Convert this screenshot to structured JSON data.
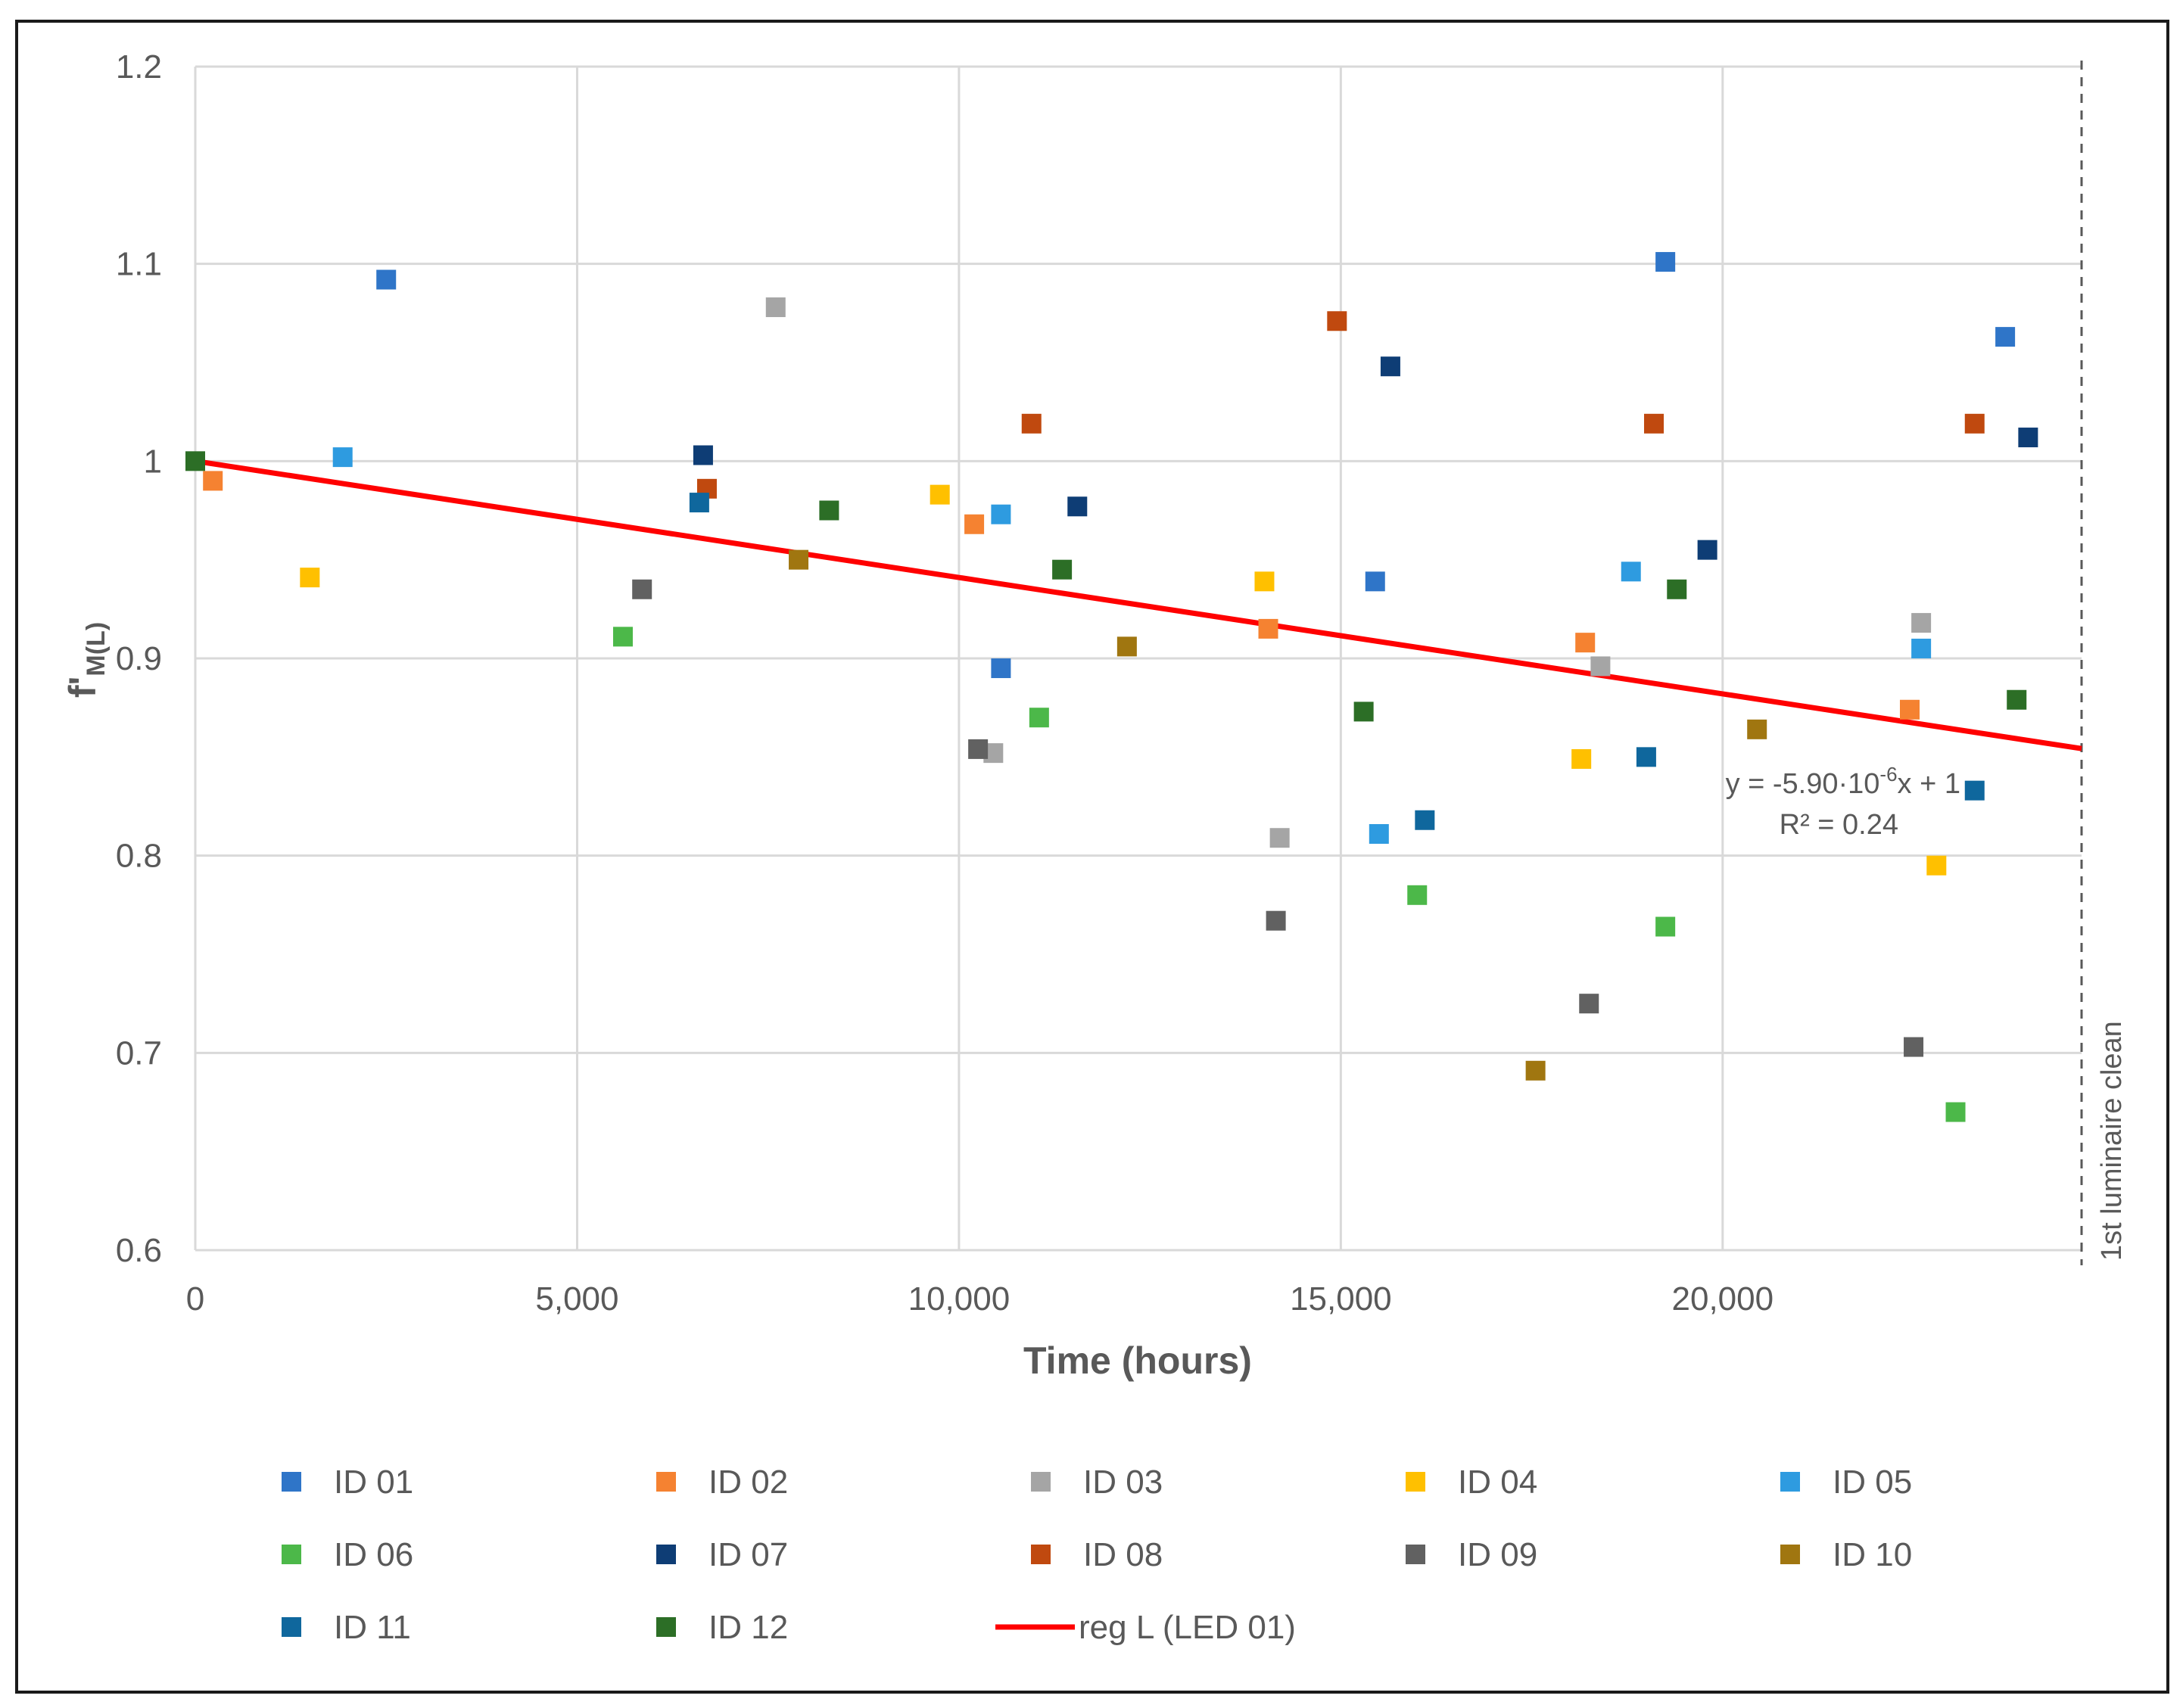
{
  "chart_data": {
    "type": "scatter",
    "title": "",
    "xlabel": "Time (hours)",
    "ylabel_main": "f'",
    "ylabel_sub": "M(L)",
    "xlim": [
      0,
      24700
    ],
    "ylim": [
      0.6,
      1.2
    ],
    "x_ticks": [
      0,
      5000,
      10000,
      15000,
      20000
    ],
    "x_tick_labels": [
      "0",
      "5,000",
      "10,000",
      "15,000",
      "20,000"
    ],
    "y_ticks": [
      0.6,
      0.7,
      0.8,
      0.9,
      1.0,
      1.1,
      1.2
    ],
    "y_tick_labels": [
      "0.6",
      "0.7",
      "0.8",
      "0.9",
      "1",
      "1.1",
      "1.2"
    ],
    "grid": true,
    "legend_position": "bottom",
    "series": [
      {
        "name": "ID 01",
        "color": "#2F75C8",
        "points": [
          [
            2500,
            1.092
          ],
          [
            19250,
            1.101
          ],
          [
            15450,
            0.939
          ],
          [
            10550,
            0.895
          ],
          [
            23700,
            1.063
          ]
        ]
      },
      {
        "name": "ID 02",
        "color": "#F58231",
        "points": [
          [
            230,
            0.99
          ],
          [
            10200,
            0.968
          ],
          [
            14050,
            0.915
          ],
          [
            18200,
            0.908
          ],
          [
            22450,
            0.874
          ]
        ]
      },
      {
        "name": "ID 03",
        "color": "#A5A5A5",
        "points": [
          [
            7600,
            1.078
          ],
          [
            10450,
            0.852
          ],
          [
            14200,
            0.809
          ],
          [
            18400,
            0.896
          ],
          [
            22600,
            0.918
          ]
        ]
      },
      {
        "name": "ID 04",
        "color": "#FFC000",
        "points": [
          [
            1500,
            0.941
          ],
          [
            9750,
            0.983
          ],
          [
            14000,
            0.939
          ],
          [
            18150,
            0.849
          ],
          [
            22800,
            0.795
          ]
        ]
      },
      {
        "name": "ID 05",
        "color": "#2E9BE0",
        "points": [
          [
            1930,
            1.002
          ],
          [
            10550,
            0.973
          ],
          [
            15500,
            0.811
          ],
          [
            18800,
            0.944
          ],
          [
            22600,
            0.905
          ]
        ]
      },
      {
        "name": "ID 06",
        "color": "#4CB849",
        "points": [
          [
            5600,
            0.911
          ],
          [
            11050,
            0.87
          ],
          [
            16000,
            0.78
          ],
          [
            19250,
            0.764
          ],
          [
            23050,
            0.67
          ]
        ]
      },
      {
        "name": "ID 07",
        "color": "#0E3D75",
        "points": [
          [
            6650,
            1.003
          ],
          [
            11550,
            0.977
          ],
          [
            15650,
            1.048
          ],
          [
            19800,
            0.955
          ],
          [
            24000,
            1.012
          ]
        ]
      },
      {
        "name": "ID 08",
        "color": "#C0490F",
        "points": [
          [
            6700,
            0.986
          ],
          [
            10950,
            1.019
          ],
          [
            14950,
            1.071
          ],
          [
            19100,
            1.019
          ],
          [
            23300,
            1.019
          ]
        ]
      },
      {
        "name": "ID 09",
        "color": "#616161",
        "points": [
          [
            5850,
            0.935
          ],
          [
            10250,
            0.854
          ],
          [
            14150,
            0.767
          ],
          [
            18250,
            0.725
          ],
          [
            22500,
            0.703
          ]
        ]
      },
      {
        "name": "ID 10",
        "color": "#A07610",
        "points": [
          [
            7900,
            0.95
          ],
          [
            12200,
            0.906
          ],
          [
            17550,
            0.691
          ],
          [
            20450,
            0.864
          ]
        ]
      },
      {
        "name": "ID 11",
        "color": "#0F679D",
        "points": [
          [
            6600,
            0.979
          ],
          [
            19000,
            0.85
          ],
          [
            16100,
            0.818
          ],
          [
            23300,
            0.833
          ]
        ]
      },
      {
        "name": "ID 12",
        "color": "#2C6E26",
        "points": [
          [
            0,
            1.0
          ],
          [
            8300,
            0.975
          ],
          [
            11350,
            0.945
          ],
          [
            15300,
            0.873
          ],
          [
            19400,
            0.935
          ],
          [
            23850,
            0.879
          ]
        ]
      }
    ],
    "regression": {
      "name": "reg L (LED 01)",
      "color": "#FF0000",
      "slope": -5.9e-06,
      "intercept": 1.0,
      "x_range": [
        0,
        24700
      ],
      "equation_prefix": "y = -5.90·10",
      "equation_exp": "-6",
      "equation_suffix": "x + 1",
      "r2_label": "R² = 0.24"
    },
    "vertical_marker": {
      "x": 24700,
      "label": "1st luminaire clean"
    }
  }
}
